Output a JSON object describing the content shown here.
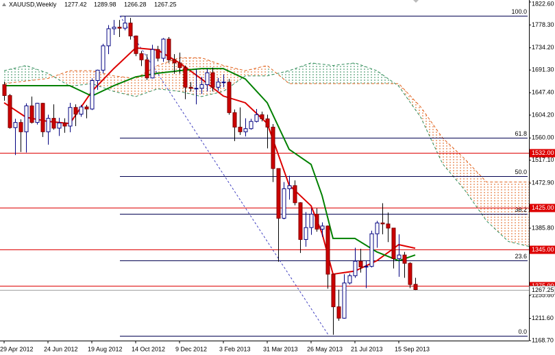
{
  "chart_data": {
    "type": "candlestick",
    "title": "XAUUSD,Weekly",
    "categories": [
      "29 Apr 2012",
      null,
      null,
      null,
      null,
      null,
      null,
      null,
      "24 Jun 2012",
      null,
      null,
      null,
      null,
      null,
      null,
      null,
      "19 Aug 2012",
      null,
      null,
      null,
      null,
      null,
      null,
      null,
      "14 Oct 2012",
      null,
      null,
      null,
      null,
      null,
      null,
      null,
      "9 Dec 2012",
      null,
      null,
      null,
      null,
      null,
      null,
      null,
      "3 Feb 2013",
      null,
      null,
      null,
      null,
      null,
      null,
      null,
      "31 Mar 2013",
      null,
      null,
      null,
      null,
      null,
      null,
      null,
      "26 May 2013",
      null,
      null,
      null,
      null,
      null,
      null,
      null,
      "21 Jul 2013",
      null,
      null,
      null,
      null,
      null,
      null,
      null,
      "15 Sep 2013",
      null,
      null,
      null
    ],
    "open": [
      1663,
      1642,
      1580,
      1590,
      1572,
      1622,
      1590,
      1627,
      1572,
      1598,
      1579,
      1589,
      1583,
      1619,
      1606,
      1620,
      1616,
      1671,
      1691,
      1738,
      1771,
      1774,
      1772,
      1782,
      1757,
      1723,
      1711,
      1676,
      1731,
      1714,
      1751,
      1711,
      1705,
      1696,
      1658,
      1656,
      1656,
      1663,
      1686,
      1658,
      1668,
      1668,
      1609,
      1581,
      1572,
      1578,
      1592,
      1605,
      1597,
      1581,
      1501,
      1405,
      1462,
      1468,
      1435,
      1364,
      1387,
      1413,
      1384,
      1390,
      1297,
      1234,
      1212,
      1280,
      1294,
      1322,
      1311,
      1312,
      1375,
      1396,
      1394,
      1386,
      1327,
      1334,
      1318,
      1277.42
    ],
    "high": [
      1669,
      1645,
      1597,
      1596,
      1627,
      1640,
      1628,
      1628,
      1605,
      1625,
      1599,
      1598,
      1628,
      1625,
      1624,
      1624,
      1675,
      1692,
      1742,
      1778,
      1788,
      1788,
      1796,
      1792,
      1758,
      1728,
      1722,
      1740,
      1738,
      1753,
      1755,
      1722,
      1725,
      1700,
      1668,
      1693,
      1678,
      1694,
      1696,
      1676,
      1683,
      1674,
      1615,
      1619,
      1598,
      1597,
      1616,
      1611,
      1605,
      1587,
      1501,
      1475,
      1487,
      1478,
      1436,
      1417,
      1424,
      1424,
      1397,
      1391,
      1298,
      1267,
      1297,
      1298,
      1348,
      1346,
      1323,
      1381,
      1400,
      1434,
      1416,
      1386,
      1374,
      1340,
      1320,
      1289.98
    ],
    "low": [
      1632,
      1578,
      1527,
      1533,
      1532,
      1588,
      1586,
      1562,
      1547,
      1576,
      1564,
      1570,
      1571,
      1583,
      1601,
      1598,
      1614,
      1653,
      1685,
      1722,
      1759,
      1755,
      1768,
      1750,
      1718,
      1699,
      1672,
      1675,
      1708,
      1707,
      1705,
      1684,
      1684,
      1635,
      1650,
      1625,
      1645,
      1650,
      1650,
      1651,
      1658,
      1605,
      1554,
      1566,
      1563,
      1576,
      1590,
      1592,
      1540,
      1475,
      1321,
      1403,
      1441,
      1430,
      1338,
      1350,
      1373,
      1379,
      1369,
      1269,
      1180,
      1207,
      1211,
      1277,
      1290,
      1300,
      1270,
      1310,
      1348,
      1374,
      1359,
      1308,
      1292,
      1290,
      1270,
      1266.28
    ],
    "close": [
      1642,
      1580,
      1590,
      1572,
      1622,
      1590,
      1627,
      1572,
      1598,
      1579,
      1589,
      1583,
      1619,
      1606,
      1620,
      1616,
      1671,
      1691,
      1738,
      1771,
      1774,
      1772,
      1782,
      1757,
      1723,
      1711,
      1676,
      1731,
      1714,
      1751,
      1711,
      1705,
      1696,
      1658,
      1656,
      1656,
      1663,
      1686,
      1658,
      1668,
      1668,
      1609,
      1581,
      1572,
      1578,
      1592,
      1605,
      1597,
      1581,
      1501,
      1405,
      1462,
      1468,
      1435,
      1364,
      1387,
      1413,
      1384,
      1390,
      1297,
      1234,
      1212,
      1280,
      1294,
      1322,
      1311,
      1312,
      1375,
      1396,
      1394,
      1386,
      1327,
      1334,
      1318,
      1277,
      1267.25
    ],
    "up_color": "#ffffff",
    "down_color": "#cc0000",
    "ylim": [
      1168.7,
      1826.5
    ],
    "yticks": [
      {
        "value": 1822.6,
        "label": "1822.60"
      },
      {
        "value": 1778.3,
        "label": "1778.30"
      },
      {
        "value": 1734.2,
        "label": "1734.20"
      },
      {
        "value": 1691.3,
        "label": "1691.30"
      },
      {
        "value": 1647.4,
        "label": "1647.40"
      },
      {
        "value": 1604.2,
        "label": "1604.20"
      },
      {
        "value": 1560,
        "label": "1560.00"
      },
      {
        "value": 1517.1,
        "label": "1517.10"
      },
      {
        "value": 1472.9,
        "label": "1472.90"
      },
      {
        "value": 1385.8,
        "label": "1385.80"
      },
      {
        "value": 1255.8,
        "label": "1255.80"
      },
      {
        "value": 1211.6,
        "label": "1211.60"
      },
      {
        "value": 1168.7,
        "label": "1168.70"
      }
    ],
    "lines": [
      {
        "color": "#dd0000",
        "x": [
          0,
          4,
          8,
          12,
          16,
          20,
          24,
          28,
          32,
          36,
          40,
          44,
          48,
          52,
          56,
          58,
          60,
          64,
          68,
          72,
          75
        ],
        "values": [
          1628,
          1600,
          1592,
          1588,
          1650,
          1694,
          1734,
          1730,
          1705,
          1674,
          1641,
          1628,
          1588,
          1469,
          1429,
          1376,
          1297,
          1303,
          1323,
          1354,
          1347
        ]
      },
      {
        "color": "#008000",
        "x": [
          0,
          4,
          8,
          12,
          16,
          20,
          24,
          28,
          32,
          36,
          40,
          44,
          48,
          52,
          56,
          58,
          60,
          64,
          68,
          72,
          75
        ],
        "values": [
          1661,
          1661,
          1661,
          1661,
          1641,
          1661,
          1678,
          1685,
          1690,
          1694,
          1694,
          1674,
          1628,
          1538,
          1509,
          1449,
          1366,
          1366,
          1340,
          1323,
          1334
        ]
      }
    ],
    "cloud": {
      "x": [
        0,
        4,
        8,
        12,
        16,
        20,
        24,
        28,
        32,
        36,
        40,
        44,
        48,
        52,
        56,
        60,
        64,
        68,
        72,
        76,
        80,
        84,
        88,
        92,
        96
      ],
      "span_a": [
        1690,
        1700,
        1685,
        1660,
        1665,
        1650,
        1640,
        1655,
        1650,
        1640,
        1650,
        1680,
        1680,
        1690,
        1705,
        1700,
        1705,
        1690,
        1660,
        1600,
        1510,
        1460,
        1400,
        1360,
        1350
      ],
      "span_b": [
        1665,
        1670,
        1675,
        1690,
        1690,
        1680,
        1675,
        1700,
        1715,
        1715,
        1700,
        1690,
        1700,
        1665,
        1665,
        1665,
        1665,
        1665,
        1665,
        1620,
        1560,
        1520,
        1475,
        1475,
        1475
      ],
      "up_color": "#2e8b57",
      "down_color": "#e0601a"
    },
    "fib": {
      "labels": [
        "100.0",
        "61.8",
        "50.0",
        "38.2",
        "23.6",
        "0.0"
      ],
      "prices": [
        1796,
        1559.9,
        1487,
        1414.1,
        1323.8,
        1178
      ],
      "color": "#000050"
    },
    "hlines": {
      "values": [
        1532,
        1425,
        1345,
        1275
      ],
      "value_labels": [
        "1532.00",
        "1425.00",
        "1345.00",
        "1275.00"
      ],
      "color": "#dd0000"
    }
  }
}
